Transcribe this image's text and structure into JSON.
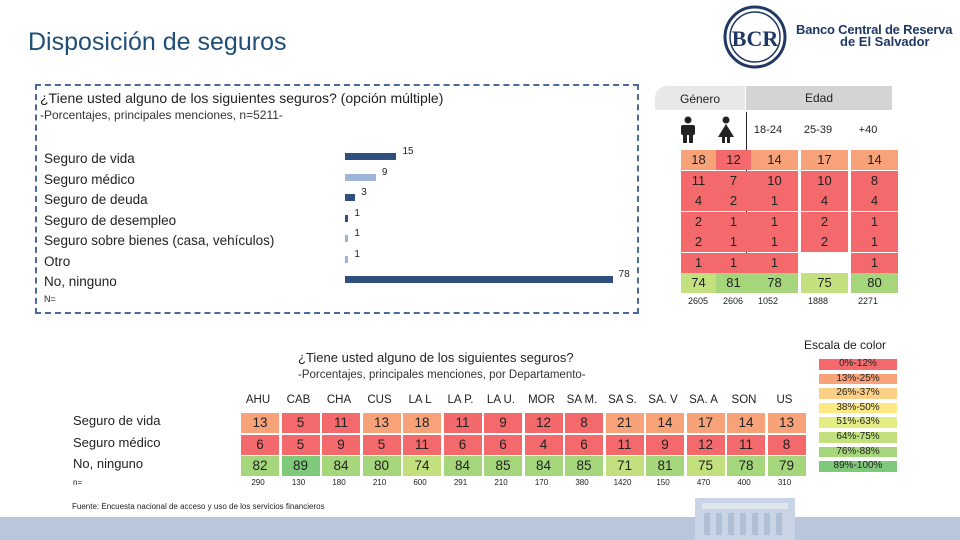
{
  "title": "Disposición de seguros",
  "bank": {
    "line1": "Banco Central de Reserva",
    "line2": "de El Salvador",
    "logo_text": "BCR"
  },
  "survey1": {
    "question": "¿Tiene usted alguno de los siguientes seguros? (opción múltiple)",
    "subtitle": "-Porcentajes, principales menciones, n=5211-",
    "n_label": "N=",
    "rows": [
      "Seguro de vida",
      "Seguro médico",
      "Seguro de deuda",
      "Seguro de desempleo",
      "Seguro sobre bienes (casa, vehículos)",
      "Otro",
      "No, ninguno"
    ]
  },
  "chart_data": [
    {
      "type": "bar",
      "orientation": "horizontal",
      "categories": [
        "Seguro de vida",
        "Seguro médico",
        "Seguro de deuda",
        "Seguro de desempleo",
        "Seguro sobre bienes (casa, vehículos)",
        "Otro",
        "No, ninguno"
      ],
      "values": [
        15,
        9,
        3,
        1,
        1,
        1,
        78
      ],
      "value_labels": [
        "15",
        "9",
        "3",
        "1",
        "1",
        "1",
        "78"
      ],
      "bar_colors": [
        "#2f4f7f",
        "#9db6d8",
        "#2f4f7f",
        "#2f4f7f",
        "#9db6d8",
        "#9db6d8",
        "#2f4f7f"
      ],
      "xlim": [
        0,
        100
      ]
    },
    {
      "type": "table",
      "group_headers": {
        "gender": "Género",
        "age": "Edad"
      },
      "columns": [
        "male-icon",
        "female-icon",
        "18-24",
        "25-39",
        "+40"
      ],
      "rows": [
        [
          "18",
          "12",
          "14",
          "17",
          "14"
        ],
        [
          "11",
          "7",
          "10",
          "10",
          "8"
        ],
        [
          "4",
          "2",
          "1",
          "4",
          "4"
        ],
        [
          "2",
          "1",
          "1",
          "2",
          "1"
        ],
        [
          "2",
          "1",
          "1",
          "2",
          "1"
        ],
        [
          "1",
          "1",
          "1",
          "",
          "1"
        ],
        [
          "74",
          "81",
          "78",
          "75",
          "80"
        ]
      ],
      "n": [
        "2605",
        "2606",
        "1052",
        "1888",
        "2271"
      ]
    },
    {
      "type": "table",
      "title": "¿Tiene usted alguno de los siguientes seguros?",
      "subtitle": "-Porcentajes, principales menciones, por Departamento-",
      "columns": [
        "AHU",
        "CAB",
        "CHA",
        "CUS",
        "LA L",
        "LA P.",
        "LA U.",
        "MOR",
        "SA M.",
        "SA S.",
        "SA. V",
        "SA. A",
        "SON",
        "US"
      ],
      "row_labels": [
        "Seguro de vida",
        "Seguro médico",
        "No, ninguno"
      ],
      "rows": [
        [
          "13",
          "5",
          "11",
          "13",
          "18",
          "11",
          "9",
          "12",
          "8",
          "21",
          "14",
          "17",
          "14",
          "13"
        ],
        [
          "6",
          "5",
          "9",
          "5",
          "11",
          "6",
          "6",
          "4",
          "6",
          "11",
          "9",
          "12",
          "11",
          "8"
        ],
        [
          "82",
          "89",
          "84",
          "80",
          "74",
          "84",
          "85",
          "84",
          "85",
          "71",
          "81",
          "75",
          "78",
          "79"
        ]
      ],
      "n_label": "n=",
      "n": [
        "290",
        "130",
        "180",
        "210",
        "600",
        "291",
        "210",
        "170",
        "380",
        "1420",
        "150",
        "470",
        "400",
        "310"
      ]
    }
  ],
  "color_scale": {
    "title": "Escala de color",
    "items": [
      {
        "label": "0%-12%",
        "color": "#f4696b"
      },
      {
        "label": "13%-25%",
        "color": "#f8a27a"
      },
      {
        "label": "26%-37%",
        "color": "#fbcf85"
      },
      {
        "label": "38%-50%",
        "color": "#fde884"
      },
      {
        "label": "51%-63%",
        "color": "#e4ec84"
      },
      {
        "label": "64%-75%",
        "color": "#c2e07e"
      },
      {
        "label": "76%-88%",
        "color": "#a5d67c"
      },
      {
        "label": "89%-100%",
        "color": "#7fc97a"
      }
    ]
  },
  "source": "Fuente: Encuesta nacional de acceso y uso de los servicios financieros"
}
